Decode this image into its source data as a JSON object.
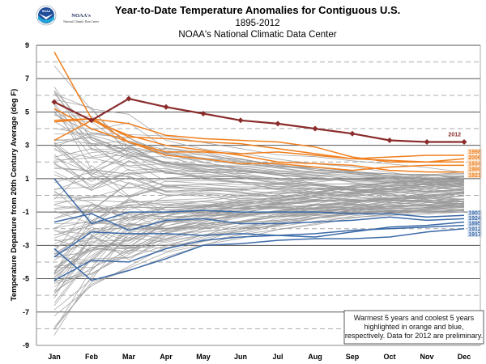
{
  "header": {
    "logo_name": "NOAA's",
    "logo_subtitle": "National Climatic Data Center",
    "logo_badge": "NOAA"
  },
  "chart_data": {
    "type": "line",
    "title": "Year-to-Date  Temperature  Anomalies  for Contiguous  U.S.",
    "subtitle": "1895-2012",
    "source": "NOAA's National Climatic Data Center",
    "xlabel": "",
    "ylabel": "Temperature Departure from 20th Century Average (deg F)",
    "ylim": [
      -9,
      9
    ],
    "yticks": [
      "9",
      "7",
      "5",
      "3",
      "1",
      "-1",
      "-3",
      "-5",
      "-7",
      "-9"
    ],
    "ytick_values": [
      9,
      7,
      5,
      3,
      1,
      -1,
      -3,
      -5,
      -7,
      -9
    ],
    "minor_dashed_gridlines": [
      8,
      6,
      4,
      2,
      0,
      -2,
      -4,
      -6,
      -8
    ],
    "grid": true,
    "categories": [
      "Jan",
      "Feb",
      "Mar",
      "Apr",
      "May",
      "Jun",
      "Jul",
      "Aug",
      "Sep",
      "Oct",
      "Nov",
      "Dec"
    ],
    "colors": {
      "current": "#8b2c2c",
      "warm": "#f07f1e",
      "cool": "#3b6aa8",
      "other": "#9a9a9a"
    },
    "highlight_series": [
      {
        "name": "2012",
        "group": "current",
        "values": [
          5.6,
          4.5,
          5.8,
          5.3,
          4.9,
          4.5,
          4.3,
          4.0,
          3.7,
          3.3,
          3.2,
          3.2
        ]
      },
      {
        "name": "1998",
        "group": "warm",
        "values": [
          4.5,
          4.6,
          3.2,
          2.6,
          2.6,
          2.5,
          2.6,
          2.4,
          2.2,
          2.3,
          2.4,
          2.4
        ]
      },
      {
        "name": "2006",
        "group": "warm",
        "values": [
          8.6,
          4.6,
          3.5,
          3.4,
          3.2,
          3.1,
          2.8,
          2.5,
          2.2,
          2.1,
          2.0,
          2.2
        ]
      },
      {
        "name": "1934",
        "group": "warm",
        "values": [
          4.4,
          4.6,
          4.3,
          3.6,
          3.4,
          3.3,
          3.2,
          2.9,
          2.3,
          2.0,
          2.0,
          2.0
        ]
      },
      {
        "name": "1999",
        "group": "warm",
        "values": [
          5.2,
          4.0,
          3.2,
          2.4,
          2.2,
          1.9,
          1.9,
          1.7,
          1.5,
          1.7,
          1.8,
          1.8
        ]
      },
      {
        "name": "1921",
        "group": "warm",
        "values": [
          3.3,
          4.5,
          3.6,
          3.0,
          2.7,
          2.4,
          2.0,
          1.9,
          1.8,
          1.5,
          1.4,
          1.4
        ]
      },
      {
        "name": "1903",
        "group": "cool",
        "values": [
          1.0,
          -1.7,
          -1.0,
          -1.0,
          -0.9,
          -1.0,
          -1.0,
          -1.0,
          -1.1,
          -1.1,
          -1.3,
          -1.2
        ]
      },
      {
        "name": "1924",
        "group": "cool",
        "values": [
          -1.6,
          -1.1,
          -2.1,
          -1.5,
          -1.4,
          -1.7,
          -1.7,
          -1.6,
          -1.5,
          -1.3,
          -1.5,
          -1.4
        ]
      },
      {
        "name": "1895",
        "group": "cool",
        "values": [
          -3.7,
          -2.2,
          -2.3,
          -2.3,
          -2.4,
          -2.3,
          -2.4,
          -2.5,
          -2.2,
          -1.9,
          -1.8,
          -1.6
        ]
      },
      {
        "name": "1912",
        "group": "cool",
        "values": [
          -5.1,
          -3.9,
          -4.0,
          -3.2,
          -2.7,
          -2.5,
          -2.4,
          -2.3,
          -2.1,
          -2.0,
          -1.9,
          -1.8
        ]
      },
      {
        "name": "1917",
        "group": "cool",
        "values": [
          -3.2,
          -5.1,
          -4.5,
          -3.8,
          -3.0,
          -2.9,
          -2.7,
          -2.6,
          -2.6,
          -2.5,
          -2.2,
          -2.0
        ]
      }
    ],
    "label_2012": "2012",
    "warm_labels": [
      "1998",
      "2006",
      "1934",
      "1999",
      "1921"
    ],
    "cool_labels": [
      "1903",
      "1924",
      "1895",
      "1912",
      "1917"
    ],
    "background_series_count": 107,
    "background_series_note": "All other years 1895-2011 drawn in gray; January spread roughly -8.3 to 6.3, converging to roughly -1 to 1.5 by December",
    "annotation": "Warmest 5 years and coolest 5 years highlighted in orange and blue, respectively. Data for 2012  are preliminary.",
    "annotation_lines": [
      "Warmest 5 years and coolest 5 years",
      "highlighted in orange and blue,",
      "respectively. Data for 2012  are preliminary."
    ],
    "legend_placement": "bottom-right"
  }
}
